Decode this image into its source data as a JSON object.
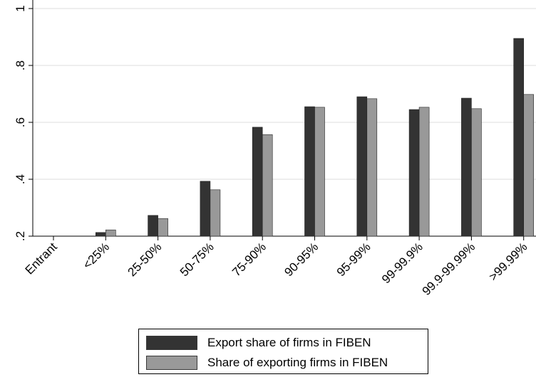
{
  "chart_data": {
    "type": "bar",
    "categories": [
      "Entrant",
      "<25%",
      "25-50%",
      "50-75%",
      "75-90%",
      "90-95%",
      "95-99%",
      "99-99.9%",
      "99.9-99.99%",
      ">99.99%"
    ],
    "series": [
      {
        "name": "Export share of firms in FIBEN",
        "color": "#333333",
        "values": [
          null,
          0.213,
          0.273,
          0.393,
          0.583,
          0.655,
          0.69,
          0.645,
          0.685,
          0.895
        ]
      },
      {
        "name": "Share of exporting firms in FIBEN",
        "color": "#999999",
        "values": [
          null,
          0.222,
          0.262,
          0.363,
          0.557,
          0.653,
          0.683,
          0.653,
          0.648,
          0.698
        ]
      }
    ],
    "yticks": [
      ".2",
      ".4",
      ".6",
      ".8",
      "1"
    ],
    "ytick_values": [
      0.2,
      0.4,
      0.6,
      0.8,
      1.0
    ],
    "ylim": [
      0.2,
      1.0
    ],
    "grid": true,
    "legend_position": "bottom",
    "title": "",
    "xlabel": "",
    "ylabel": ""
  }
}
